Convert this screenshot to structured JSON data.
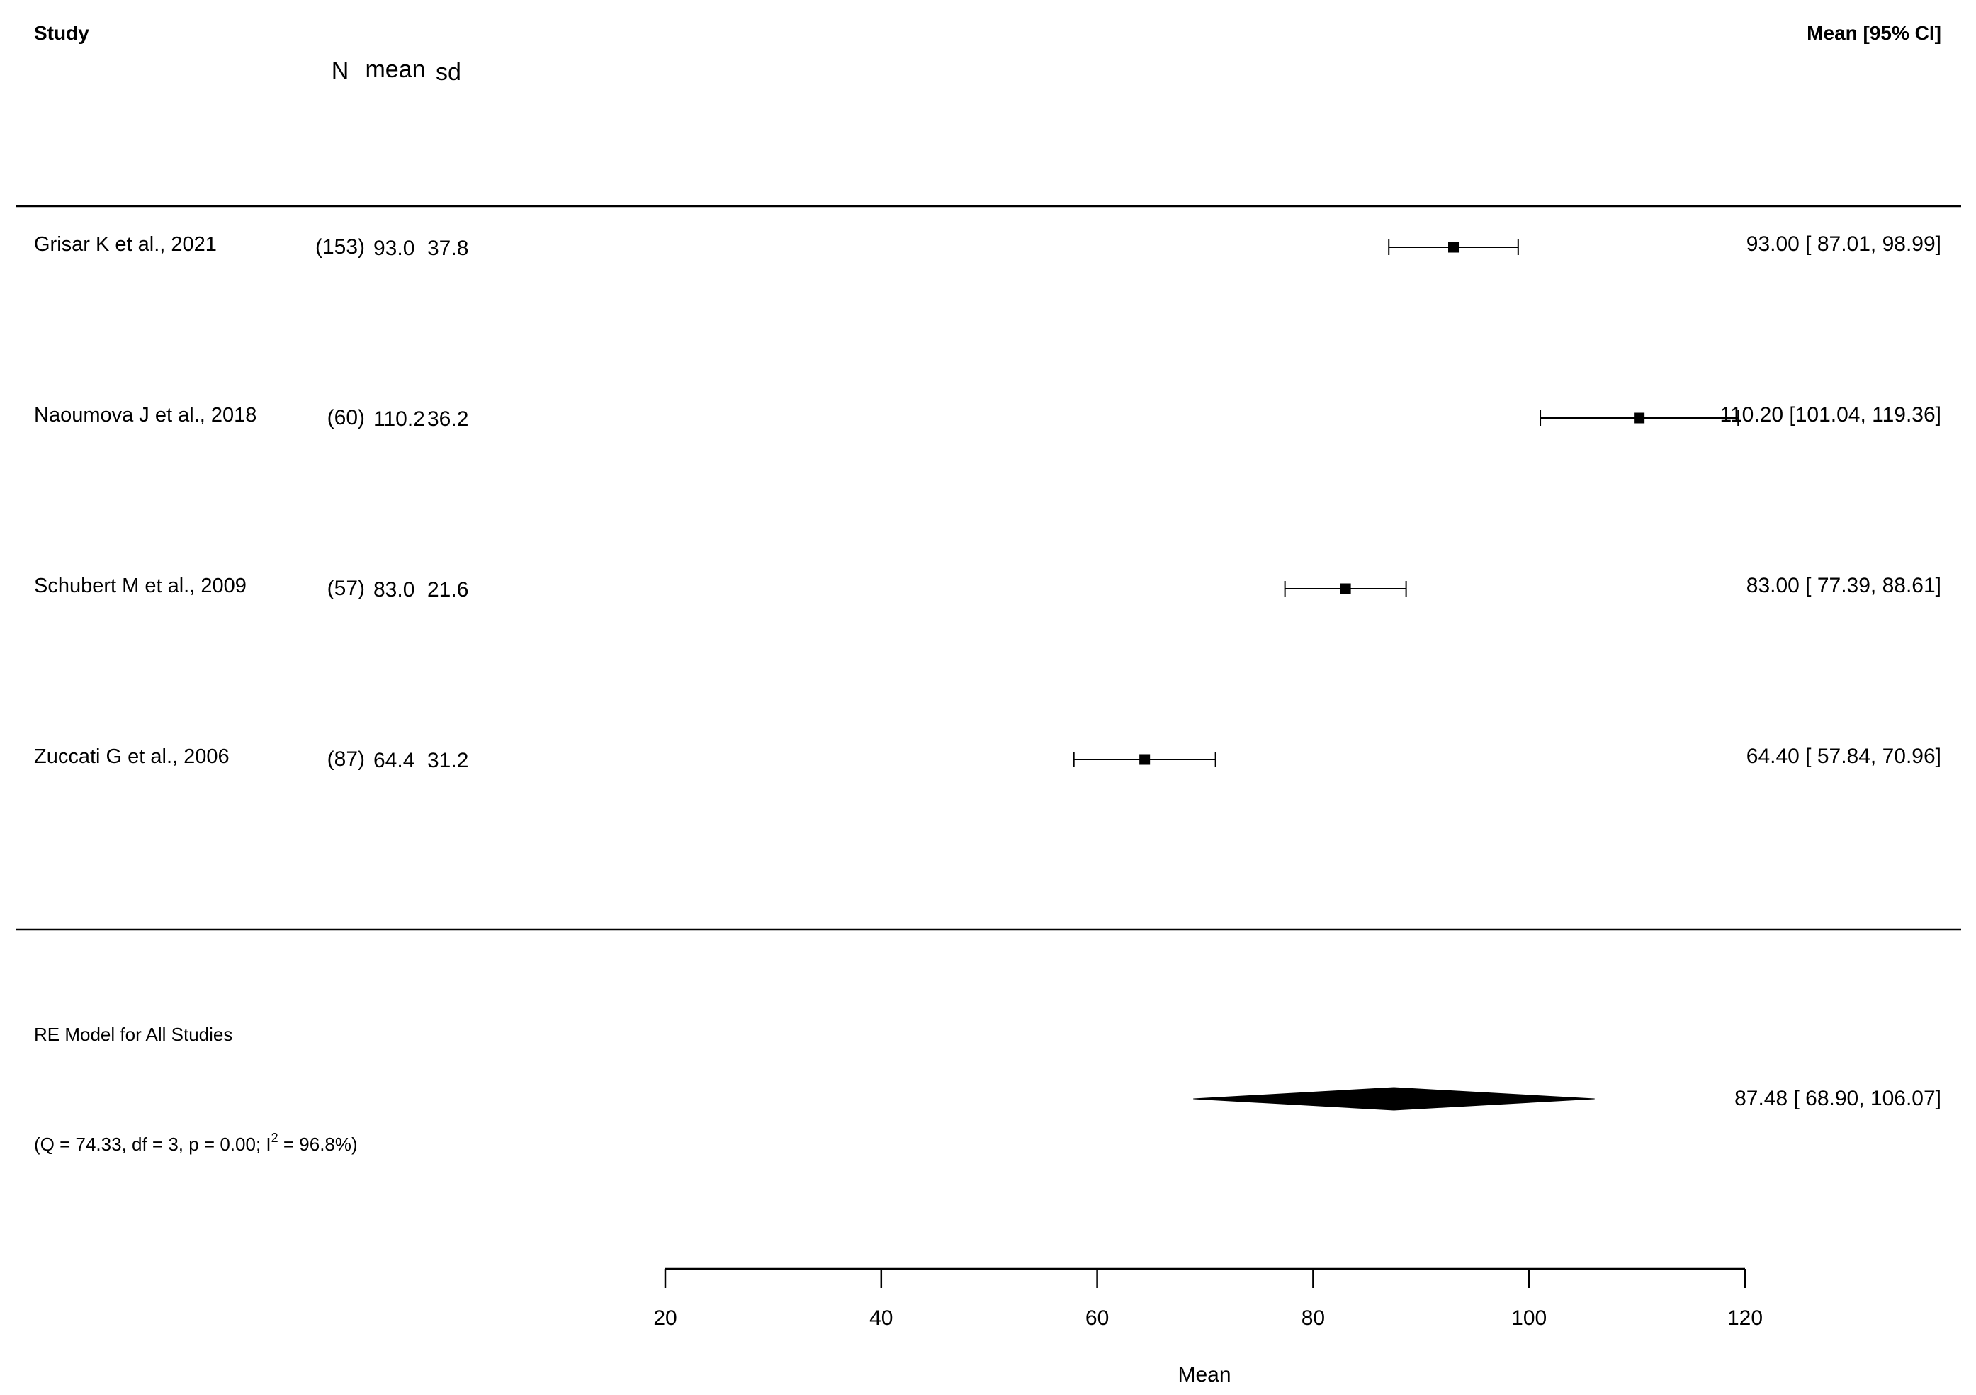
{
  "chart_data": {
    "type": "forest",
    "header": {
      "study": "Study",
      "estimate": "Mean [95% CI]"
    },
    "column_headers": {
      "n": "N",
      "mean": "mean",
      "sd": "sd"
    },
    "studies": [
      {
        "label": "Grisar K et al., 2021",
        "n": "(153)",
        "mean": "93.0",
        "sd": "37.8",
        "est": 93.0,
        "lo": 87.01,
        "hi": 98.99,
        "text": "93.00 [ 87.01,  98.99]"
      },
      {
        "label": "Naoumova J et al., 2018",
        "n": "(60)",
        "mean": "110.2",
        "sd": "36.2",
        "est": 110.2,
        "lo": 101.04,
        "hi": 119.36,
        "text": "110.20 [101.04, 119.36]"
      },
      {
        "label": "Schubert M et al., 2009",
        "n": "(57)",
        "mean": "83.0",
        "sd": "21.6",
        "est": 83.0,
        "lo": 77.39,
        "hi": 88.61,
        "text": "83.00 [ 77.39,  88.61]"
      },
      {
        "label": "Zuccati G et al., 2006",
        "n": "(87)",
        "mean": "64.4",
        "sd": "31.2",
        "est": 64.4,
        "lo": 57.84,
        "hi": 70.96,
        "text": "64.40 [ 57.84,  70.96]"
      }
    ],
    "summary": {
      "label": "RE Model for All Studies",
      "est": 87.48,
      "lo": 68.9,
      "hi": 106.07,
      "text": "87.48 [ 68.90, 106.07]",
      "heterogeneity_prefix": "(Q = 74.33, df = 3, p = 0.00; I",
      "heterogeneity_sup": "2",
      "heterogeneity_suffix": " = 96.8%)"
    },
    "xlabel": "Mean",
    "xlim": [
      20,
      120
    ],
    "ticks": [
      20,
      40,
      60,
      80,
      100,
      120
    ]
  }
}
